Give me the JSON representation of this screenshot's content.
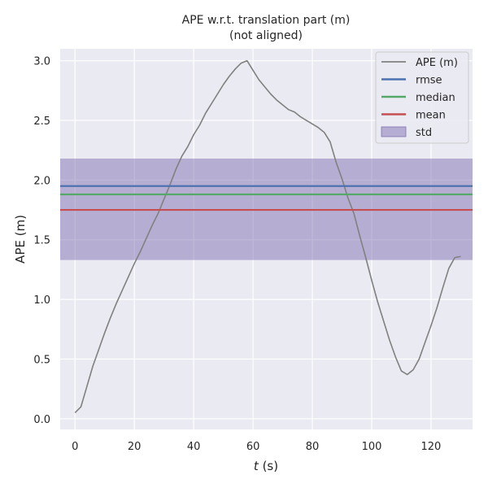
{
  "chart_data": {
    "type": "line",
    "title": "APE w.r.t. translation part (m)",
    "subtitle": "(not aligned)",
    "xlabel_italic": "t",
    "xlabel_rest": " (s)",
    "ylabel": "APE (m)",
    "xlim": [
      -5,
      134
    ],
    "ylim": [
      -0.09,
      3.1
    ],
    "xticks": [
      0,
      20,
      40,
      60,
      80,
      100,
      120
    ],
    "yticks": [
      0.0,
      0.5,
      1.0,
      1.5,
      2.0,
      2.5,
      3.0
    ],
    "ytick_labels": [
      "0.0",
      "0.5",
      "1.0",
      "1.5",
      "2.0",
      "2.5",
      "3.0"
    ],
    "grid": true,
    "legend_position": "top-right",
    "colors": {
      "ape": "#808080",
      "rmse": "#4c72b0",
      "median": "#55a868",
      "mean": "#c44e52",
      "std": "#8172b2",
      "background": "#eaeaf2",
      "grid": "#ffffff"
    },
    "stats": {
      "rmse": 1.95,
      "median": 1.88,
      "mean": 1.75,
      "std_band": [
        1.33,
        2.18
      ]
    },
    "legend": [
      {
        "key": "ape",
        "label": "APE (m)",
        "kind": "line"
      },
      {
        "key": "rmse",
        "label": "rmse",
        "kind": "line"
      },
      {
        "key": "median",
        "label": "median",
        "kind": "line"
      },
      {
        "key": "mean",
        "label": "mean",
        "kind": "line"
      },
      {
        "key": "std",
        "label": "std",
        "kind": "patch"
      }
    ],
    "series": [
      {
        "key": "ape",
        "x": [
          0,
          2,
          4,
          6,
          8,
          10,
          12,
          14,
          16,
          18,
          20,
          22,
          24,
          26,
          28,
          30,
          32,
          34,
          36,
          38,
          40,
          42,
          44,
          46,
          48,
          50,
          52,
          54,
          56,
          58,
          60,
          62,
          64,
          66,
          68,
          70,
          72,
          74,
          76,
          78,
          80,
          82,
          84,
          86,
          88,
          90,
          92,
          94,
          96,
          98,
          100,
          102,
          104,
          106,
          108,
          110,
          112,
          114,
          116,
          118,
          120,
          122,
          124,
          126,
          128,
          130
        ],
        "y": [
          0.05,
          0.1,
          0.27,
          0.44,
          0.58,
          0.72,
          0.85,
          0.97,
          1.08,
          1.19,
          1.3,
          1.4,
          1.51,
          1.62,
          1.72,
          1.84,
          1.96,
          2.09,
          2.2,
          2.28,
          2.38,
          2.46,
          2.56,
          2.64,
          2.72,
          2.8,
          2.87,
          2.93,
          2.98,
          3.0,
          2.92,
          2.84,
          2.78,
          2.72,
          2.67,
          2.63,
          2.59,
          2.57,
          2.53,
          2.5,
          2.47,
          2.44,
          2.4,
          2.32,
          2.15,
          2.01,
          1.85,
          1.72,
          1.53,
          1.35,
          1.16,
          0.98,
          0.82,
          0.66,
          0.52,
          0.4,
          0.37,
          0.41,
          0.5,
          0.64,
          0.78,
          0.93,
          1.1,
          1.26,
          1.35,
          1.36
        ]
      }
    ]
  }
}
